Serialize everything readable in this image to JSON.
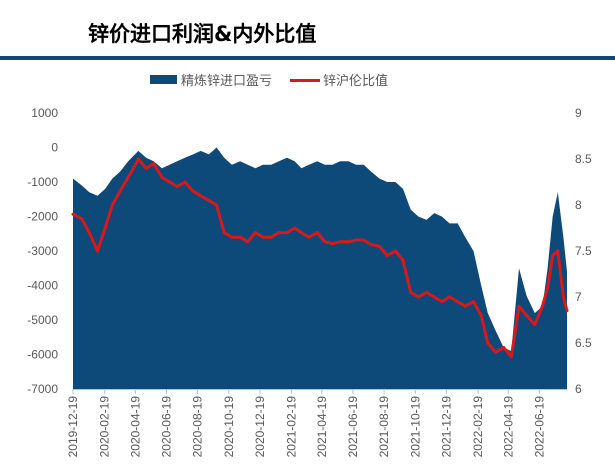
{
  "title": "锌价进口利润&内外比值",
  "chart_data": {
    "type": "area+line",
    "title": "锌价进口利润&内外比值",
    "legend_position": "top",
    "grid": false,
    "x_ticks": [
      "2019-12-19",
      "2020-02-19",
      "2020-04-19",
      "2020-06-19",
      "2020-08-19",
      "2020-10-19",
      "2020-12-19",
      "2021-02-19",
      "2021-04-19",
      "2021-06-19",
      "2021-08-19",
      "2021-10-19",
      "2021-12-19",
      "2022-02-19",
      "2022-04-19",
      "2022-06-19"
    ],
    "y_left": {
      "ylim": [
        -7000,
        1000
      ],
      "ticks": [
        "1000",
        "0",
        "-1000",
        "-2000",
        "-3000",
        "-4000",
        "-5000",
        "-6000",
        "-7000"
      ]
    },
    "y_right": {
      "ylim": [
        6,
        9
      ],
      "ticks": [
        "9",
        "8.5",
        "8",
        "7.5",
        "7",
        "6.5",
        "6"
      ]
    },
    "x": [
      "2019-12-19",
      "2020-01-05",
      "2020-01-20",
      "2020-02-05",
      "2020-02-20",
      "2020-03-05",
      "2020-03-20",
      "2020-04-05",
      "2020-04-25",
      "2020-05-10",
      "2020-05-25",
      "2020-06-10",
      "2020-06-25",
      "2020-07-10",
      "2020-07-25",
      "2020-08-10",
      "2020-08-25",
      "2020-09-10",
      "2020-09-25",
      "2020-10-10",
      "2020-10-25",
      "2020-11-10",
      "2020-11-25",
      "2020-12-10",
      "2020-12-25",
      "2021-01-10",
      "2021-01-25",
      "2021-02-10",
      "2021-02-25",
      "2021-03-10",
      "2021-03-25",
      "2021-04-10",
      "2021-04-25",
      "2021-05-10",
      "2021-05-25",
      "2021-06-10",
      "2021-06-25",
      "2021-07-10",
      "2021-07-25",
      "2021-08-10",
      "2021-08-25",
      "2021-09-10",
      "2021-09-25",
      "2021-10-10",
      "2021-10-25",
      "2021-11-10",
      "2021-11-25",
      "2021-12-10",
      "2021-12-25",
      "2022-01-10",
      "2022-01-25",
      "2022-02-10",
      "2022-02-25",
      "2022-03-10",
      "2022-03-25",
      "2022-04-10",
      "2022-04-25",
      "2022-05-10",
      "2022-05-25",
      "2022-06-10",
      "2022-06-25",
      "2022-07-05",
      "2022-07-15",
      "2022-07-25",
      "2022-08-05",
      "2022-08-12"
    ],
    "series": [
      {
        "name": "精炼锌进口盈亏",
        "type": "area",
        "color": "#0d4a7a",
        "axis": "left",
        "values": [
          -900,
          -1100,
          -1300,
          -1400,
          -1200,
          -900,
          -700,
          -400,
          -100,
          -300,
          -400,
          -600,
          -500,
          -400,
          -300,
          -200,
          -100,
          -200,
          0,
          -300,
          -500,
          -400,
          -500,
          -600,
          -500,
          -500,
          -400,
          -300,
          -400,
          -600,
          -500,
          -400,
          -500,
          -500,
          -400,
          -400,
          -500,
          -500,
          -700,
          -900,
          -1000,
          -1000,
          -1200,
          -1800,
          -2000,
          -2100,
          -1900,
          -2000,
          -2200,
          -2200,
          -2600,
          -3000,
          -4000,
          -4800,
          -5300,
          -5800,
          -5900,
          -3500,
          -4300,
          -4800,
          -4600,
          -3500,
          -2000,
          -1300,
          -2600,
          -3600
        ]
      },
      {
        "name": "锌沪伦比值",
        "type": "line",
        "color": "#d7191c",
        "axis": "right",
        "values": [
          7.9,
          7.85,
          7.7,
          7.5,
          7.75,
          8.0,
          8.15,
          8.3,
          8.5,
          8.4,
          8.45,
          8.3,
          8.25,
          8.2,
          8.25,
          8.15,
          8.1,
          8.05,
          8.0,
          7.7,
          7.65,
          7.65,
          7.6,
          7.7,
          7.65,
          7.65,
          7.7,
          7.7,
          7.75,
          7.7,
          7.65,
          7.7,
          7.6,
          7.58,
          7.6,
          7.6,
          7.62,
          7.62,
          7.57,
          7.55,
          7.45,
          7.5,
          7.4,
          7.05,
          7.0,
          7.05,
          7.0,
          6.95,
          7.0,
          6.95,
          6.9,
          6.95,
          6.8,
          6.5,
          6.4,
          6.45,
          6.35,
          6.9,
          6.8,
          6.7,
          6.9,
          7.1,
          7.45,
          7.5,
          7.0,
          6.85
        ]
      }
    ]
  }
}
